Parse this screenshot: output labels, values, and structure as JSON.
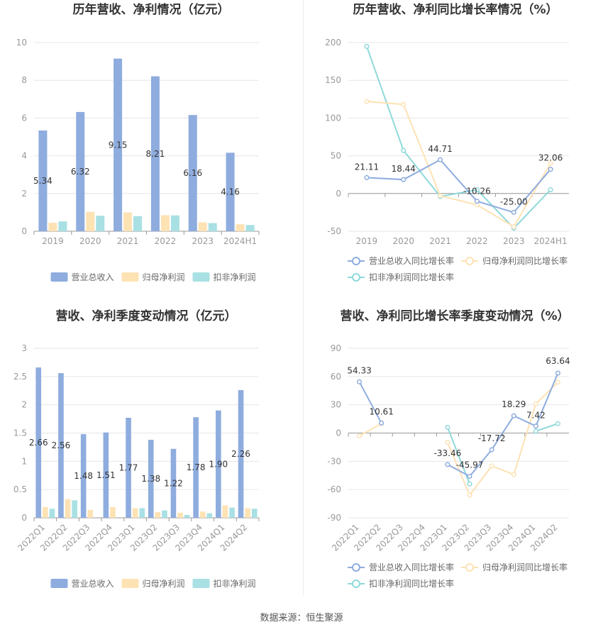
{
  "footer": "数据来源：恒生聚源",
  "colors": {
    "revenue": "#8eacde",
    "net": "#fde2b4",
    "deducted": "#a8e0e3",
    "revLine": "#8eacde",
    "netLine": "#fde2b4",
    "dedLine": "#8fd9da"
  },
  "chart_data": [
    {
      "id": "annual-amount",
      "type": "bar",
      "title": "历年营收、净利情况（亿元）",
      "categories": [
        "2019",
        "2020",
        "2021",
        "2022",
        "2023",
        "2024H1"
      ],
      "ylim": [
        0,
        10
      ],
      "yticks": [
        "0",
        "2",
        "4",
        "6",
        "8",
        "10"
      ],
      "series": [
        {
          "name": "营业总收入",
          "values": [
            5.34,
            6.32,
            9.15,
            8.21,
            6.16,
            4.16
          ],
          "labels": [
            "5.34",
            "6.32",
            "9.15",
            "8.21",
            "6.16",
            "4.16"
          ]
        },
        {
          "name": "归母净利润",
          "values": [
            0.45,
            1.03,
            1.0,
            0.85,
            0.47,
            0.37
          ]
        },
        {
          "name": "扣非净利润",
          "values": [
            0.52,
            0.82,
            0.8,
            0.84,
            0.43,
            0.33
          ]
        }
      ]
    },
    {
      "id": "annual-growth",
      "type": "line",
      "title": "历年营收、净利同比增长率情况（%）",
      "categories": [
        "2019",
        "2020",
        "2021",
        "2022",
        "2023",
        "2024H1"
      ],
      "ylim": [
        -50,
        200
      ],
      "yticks": [
        "-50",
        "0",
        "50",
        "100",
        "150",
        "200"
      ],
      "series": [
        {
          "name": "营业总收入同比增长率",
          "values": [
            21.11,
            18.44,
            44.71,
            -10.26,
            -25.0,
            32.06
          ],
          "labels": [
            "21.11",
            "18.44",
            "44.71",
            "-10.26",
            "-25.00",
            "32.06"
          ]
        },
        {
          "name": "归母净利润同比增长率",
          "values": [
            122,
            118,
            -3,
            -15,
            -44,
            40
          ]
        },
        {
          "name": "扣非净利润同比增长率",
          "values": [
            195,
            57,
            -4,
            5,
            -46,
            5
          ]
        }
      ]
    },
    {
      "id": "quarterly-amount",
      "type": "bar",
      "title": "营收、净利季度变动情况（亿元）",
      "categories": [
        "2022Q1",
        "2022Q2",
        "2022Q3",
        "2022Q4",
        "2023Q1",
        "2023Q2",
        "2023Q3",
        "2023Q4",
        "2024Q1",
        "2024Q2"
      ],
      "ylim": [
        0,
        3
      ],
      "yticks": [
        "0",
        "0.5",
        "1",
        "1.5",
        "2",
        "2.5",
        "3"
      ],
      "series": [
        {
          "name": "营业总收入",
          "values": [
            2.66,
            2.56,
            1.48,
            1.51,
            1.77,
            1.38,
            1.22,
            1.78,
            1.9,
            2.26
          ],
          "labels": [
            "2.66",
            "2.56",
            "1.48",
            "1.51",
            "1.77",
            "1.38",
            "1.22",
            "1.78",
            "1.90",
            "2.26"
          ]
        },
        {
          "name": "归母净利润",
          "values": [
            0.19,
            0.33,
            0.14,
            0.19,
            0.17,
            0.1,
            0.09,
            0.11,
            0.22,
            0.17
          ]
        },
        {
          "name": "扣非净利润",
          "values": [
            0.16,
            0.31,
            null,
            null,
            0.17,
            0.13,
            0.05,
            0.08,
            0.18,
            0.16
          ]
        }
      ]
    },
    {
      "id": "quarterly-growth",
      "type": "line",
      "title": "营收、净利同比增长率季度变动情况（%）",
      "categories": [
        "2022Q1",
        "2022Q2",
        "2022Q3",
        "2022Q4",
        "2023Q1",
        "2023Q2",
        "2023Q3",
        "2023Q4",
        "2024Q1",
        "2024Q2"
      ],
      "ylim": [
        -90,
        90
      ],
      "yticks": [
        "-90",
        "-60",
        "-30",
        "0",
        "30",
        "60",
        "90"
      ],
      "series": [
        {
          "name": "营业总收入同比增长率",
          "values": [
            54.33,
            10.61,
            null,
            null,
            -33.46,
            -45.97,
            -17.72,
            18.29,
            7.42,
            63.64
          ],
          "labels": [
            "54.33",
            "10.61",
            "",
            "",
            "-33.46",
            "-45.97",
            "-17.72",
            "18.29",
            "7.42",
            "63.64"
          ]
        },
        {
          "name": "归母净利润同比增长率",
          "values": [
            -3,
            10,
            null,
            null,
            -10,
            -66,
            -35,
            -44,
            31,
            54
          ]
        },
        {
          "name": "扣非净利润同比增长率",
          "values": [
            null,
            null,
            null,
            null,
            6,
            -54,
            null,
            null,
            2,
            10
          ]
        }
      ]
    }
  ]
}
